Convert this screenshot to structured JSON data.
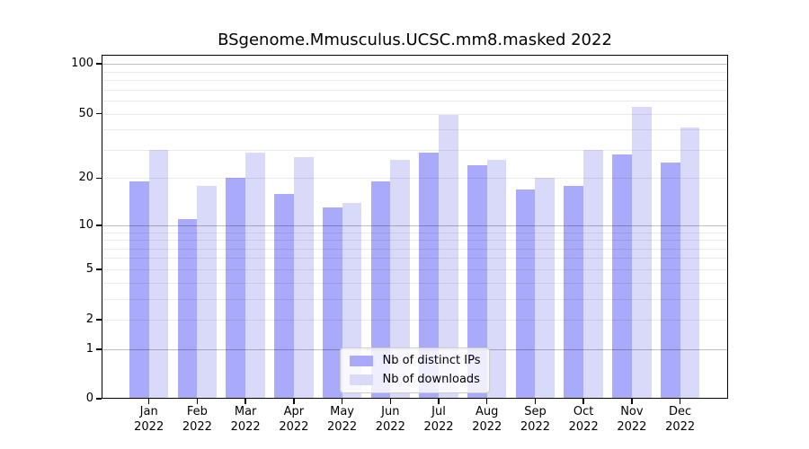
{
  "chart_data": {
    "type": "bar",
    "title": "BSgenome.Mmusculus.UCSC.mm8.masked 2022",
    "categories": [
      "Jan 2022",
      "Feb 2022",
      "Mar 2022",
      "Apr 2022",
      "May 2022",
      "Jun 2022",
      "Jul 2022",
      "Aug 2022",
      "Sep 2022",
      "Oct 2022",
      "Nov 2022",
      "Dec 2022"
    ],
    "months": [
      "Jan",
      "Feb",
      "Mar",
      "Apr",
      "May",
      "Jun",
      "Jul",
      "Aug",
      "Sep",
      "Oct",
      "Nov",
      "Dec"
    ],
    "year": "2022",
    "series": [
      {
        "name": "Nb of distinct IPs",
        "color": "#aaaafa",
        "values": [
          19,
          11,
          20,
          16,
          13,
          19,
          29,
          24,
          17,
          18,
          28,
          25
        ]
      },
      {
        "name": "Nb of downloads",
        "color": "#d9d9fa",
        "values": [
          30,
          18,
          29,
          27,
          14,
          26,
          49,
          26,
          20,
          30,
          55,
          41
        ]
      }
    ],
    "xlabel": "",
    "ylabel": "",
    "y_ticks": [
      0,
      1,
      2,
      5,
      10,
      20,
      50,
      100
    ],
    "scale": "log1p",
    "ylim": [
      0,
      113
    ],
    "grid": {
      "on": true,
      "major": [
        1,
        10,
        100
      ],
      "minor": [
        2,
        3,
        4,
        5,
        6,
        7,
        8,
        9,
        20,
        30,
        40,
        50,
        60,
        70,
        80,
        90
      ]
    },
    "legend_position": "lower center"
  }
}
